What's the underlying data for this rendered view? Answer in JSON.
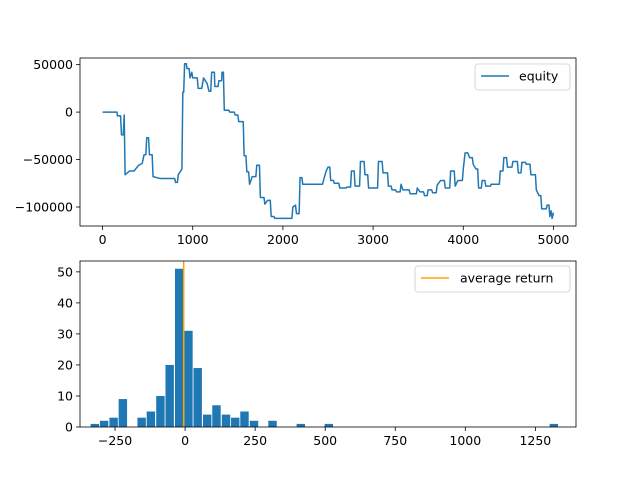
{
  "chart_data": [
    {
      "type": "line",
      "xlim": [
        -250,
        5250
      ],
      "ylim": [
        -120000,
        57000
      ],
      "xticks": [
        0,
        1000,
        2000,
        3000,
        4000,
        5000
      ],
      "xtick_labels": [
        "0",
        "1000",
        "2000",
        "3000",
        "4000",
        "5000"
      ],
      "yticks": [
        50000,
        0,
        -50000,
        -100000
      ],
      "ytick_labels": [
        "50000",
        "0",
        "−50000",
        "−100000"
      ],
      "legend": "top-right",
      "color": "#1f77b4",
      "series": [
        {
          "name": "equity",
          "points": [
            [
              0,
              0
            ],
            [
              160,
              0
            ],
            [
              165,
              -4000
            ],
            [
              200,
              -4000
            ],
            [
              210,
              -24000
            ],
            [
              230,
              -24000
            ],
            [
              240,
              -3000
            ],
            [
              250,
              -66000
            ],
            [
              300,
              -62000
            ],
            [
              350,
              -62000
            ],
            [
              400,
              -56000
            ],
            [
              440,
              -54000
            ],
            [
              460,
              -45000
            ],
            [
              480,
              -45000
            ],
            [
              490,
              -27000
            ],
            [
              510,
              -27000
            ],
            [
              520,
              -45000
            ],
            [
              550,
              -45000
            ],
            [
              560,
              -68000
            ],
            [
              640,
              -70000
            ],
            [
              800,
              -70000
            ],
            [
              810,
              -74000
            ],
            [
              830,
              -74000
            ],
            [
              840,
              -66000
            ],
            [
              880,
              -60000
            ],
            [
              890,
              21000
            ],
            [
              900,
              21000
            ],
            [
              910,
              51000
            ],
            [
              930,
              51000
            ],
            [
              935,
              46000
            ],
            [
              960,
              46000
            ],
            [
              970,
              36000
            ],
            [
              990,
              42000
            ],
            [
              1000,
              36000
            ],
            [
              1050,
              36000
            ],
            [
              1060,
              25000
            ],
            [
              1100,
              25000
            ],
            [
              1120,
              36000
            ],
            [
              1160,
              30000
            ],
            [
              1180,
              22000
            ],
            [
              1200,
              22000
            ],
            [
              1210,
              42000
            ],
            [
              1240,
              42000
            ],
            [
              1245,
              27000
            ],
            [
              1280,
              27000
            ],
            [
              1290,
              33000
            ],
            [
              1320,
              33000
            ],
            [
              1325,
              42000
            ],
            [
              1340,
              42000
            ],
            [
              1350,
              2000
            ],
            [
              1400,
              2000
            ],
            [
              1410,
              0
            ],
            [
              1460,
              0
            ],
            [
              1470,
              -3000
            ],
            [
              1500,
              -3000
            ],
            [
              1510,
              -10000
            ],
            [
              1560,
              -10000
            ],
            [
              1570,
              -46000
            ],
            [
              1590,
              -46000
            ],
            [
              1600,
              -63000
            ],
            [
              1620,
              -63000
            ],
            [
              1630,
              -76000
            ],
            [
              1660,
              -68000
            ],
            [
              1700,
              -68000
            ],
            [
              1710,
              -56000
            ],
            [
              1740,
              -56000
            ],
            [
              1750,
              -90000
            ],
            [
              1790,
              -90000
            ],
            [
              1800,
              -97000
            ],
            [
              1830,
              -93000
            ],
            [
              1860,
              -93000
            ],
            [
              1870,
              -110000
            ],
            [
              1900,
              -110000
            ],
            [
              1910,
              -112000
            ],
            [
              2100,
              -112000
            ],
            [
              2110,
              -100000
            ],
            [
              2140,
              -98000
            ],
            [
              2150,
              -107000
            ],
            [
              2180,
              -107000
            ],
            [
              2190,
              -69000
            ],
            [
              2210,
              -69000
            ],
            [
              2220,
              -76000
            ],
            [
              2440,
              -76000
            ],
            [
              2450,
              -72000
            ],
            [
              2480,
              -62000
            ],
            [
              2500,
              -58000
            ],
            [
              2520,
              -58000
            ],
            [
              2530,
              -72000
            ],
            [
              2560,
              -72000
            ],
            [
              2570,
              -75000
            ],
            [
              2620,
              -75000
            ],
            [
              2630,
              -80000
            ],
            [
              2700,
              -80000
            ],
            [
              2710,
              -79000
            ],
            [
              2750,
              -79000
            ],
            [
              2760,
              -62000
            ],
            [
              2790,
              -62000
            ],
            [
              2800,
              -78000
            ],
            [
              2850,
              -78000
            ],
            [
              2860,
              -52000
            ],
            [
              2900,
              -52000
            ],
            [
              2910,
              -66000
            ],
            [
              2940,
              -66000
            ],
            [
              2950,
              -80000
            ],
            [
              3050,
              -80000
            ],
            [
              3060,
              -52000
            ],
            [
              3100,
              -52000
            ],
            [
              3110,
              -64000
            ],
            [
              3160,
              -64000
            ],
            [
              3170,
              -78000
            ],
            [
              3200,
              -78000
            ],
            [
              3210,
              -82000
            ],
            [
              3250,
              -82000
            ],
            [
              3260,
              -84000
            ],
            [
              3300,
              -84000
            ],
            [
              3310,
              -76000
            ],
            [
              3330,
              -82000
            ],
            [
              3400,
              -82000
            ],
            [
              3410,
              -86000
            ],
            [
              3480,
              -86000
            ],
            [
              3490,
              -80000
            ],
            [
              3520,
              -84000
            ],
            [
              3560,
              -84000
            ],
            [
              3570,
              -88000
            ],
            [
              3600,
              -88000
            ],
            [
              3610,
              -82000
            ],
            [
              3650,
              -82000
            ],
            [
              3660,
              -85000
            ],
            [
              3700,
              -85000
            ],
            [
              3710,
              -77000
            ],
            [
              3750,
              -72000
            ],
            [
              3790,
              -72000
            ],
            [
              3800,
              -80000
            ],
            [
              3850,
              -80000
            ],
            [
              3860,
              -62000
            ],
            [
              3900,
              -62000
            ],
            [
              3910,
              -78000
            ],
            [
              3940,
              -72000
            ],
            [
              3990,
              -72000
            ],
            [
              4000,
              -60000
            ],
            [
              4020,
              -43000
            ],
            [
              4050,
              -43000
            ],
            [
              4070,
              -48000
            ],
            [
              4100,
              -48000
            ],
            [
              4110,
              -55000
            ],
            [
              4140,
              -60000
            ],
            [
              4160,
              -60000
            ],
            [
              4170,
              -80000
            ],
            [
              4200,
              -80000
            ],
            [
              4210,
              -72000
            ],
            [
              4240,
              -72000
            ],
            [
              4250,
              -78000
            ],
            [
              4300,
              -78000
            ],
            [
              4310,
              -76000
            ],
            [
              4400,
              -76000
            ],
            [
              4410,
              -62000
            ],
            [
              4440,
              -62000
            ],
            [
              4450,
              -48000
            ],
            [
              4480,
              -48000
            ],
            [
              4490,
              -58000
            ],
            [
              4540,
              -58000
            ],
            [
              4550,
              -52000
            ],
            [
              4600,
              -52000
            ],
            [
              4610,
              -64000
            ],
            [
              4640,
              -64000
            ],
            [
              4650,
              -53000
            ],
            [
              4690,
              -53000
            ],
            [
              4700,
              -55000
            ],
            [
              4740,
              -55000
            ],
            [
              4750,
              -66000
            ],
            [
              4800,
              -66000
            ],
            [
              4810,
              -82000
            ],
            [
              4840,
              -88000
            ],
            [
              4860,
              -88000
            ],
            [
              4870,
              -102000
            ],
            [
              4920,
              -102000
            ],
            [
              4930,
              -98000
            ],
            [
              4950,
              -98000
            ],
            [
              4960,
              -110000
            ],
            [
              4975,
              -104000
            ],
            [
              4985,
              -112000
            ],
            [
              5000,
              -106000
            ]
          ]
        }
      ]
    },
    {
      "type": "bar",
      "xlim": [
        -375,
        1395
      ],
      "ylim": [
        0,
        53.5
      ],
      "xticks": [
        -250,
        0,
        250,
        500,
        750,
        1000,
        1250
      ],
      "xtick_labels": [
        "−250",
        "0",
        "250",
        "500",
        "750",
        "1000",
        "1250"
      ],
      "yticks": [
        0,
        10,
        20,
        30,
        40,
        50
      ],
      "ytick_labels": [
        "0",
        "10",
        "20",
        "30",
        "40",
        "50"
      ],
      "legend": "top-right",
      "bar_color": "#1f77b4",
      "line_color": "#ffa500",
      "bin_width": 33.4,
      "bin_centers": [
        -322,
        -289,
        -255,
        -222,
        -188,
        -155,
        -122,
        -88,
        -55,
        -21,
        12,
        45,
        79,
        112,
        146,
        179,
        212,
        246,
        279,
        312,
        346,
        379,
        413,
        446,
        480,
        513,
        547,
        580,
        613,
        647,
        680,
        714,
        747,
        781,
        814,
        848,
        881,
        914,
        948,
        981,
        1015,
        1048,
        1082,
        1115,
        1149,
        1182,
        1216,
        1249,
        1282,
        1316
      ],
      "counts": [
        1,
        2,
        3,
        9,
        0,
        3,
        5,
        10,
        20,
        51,
        31,
        19,
        4,
        7,
        4,
        3,
        5,
        2,
        0,
        2,
        0,
        0,
        1,
        0,
        0,
        1,
        0,
        0,
        0,
        0,
        0,
        0,
        0,
        0,
        0,
        0,
        0,
        0,
        0,
        0,
        0,
        0,
        0,
        0,
        0,
        0,
        0,
        0,
        0,
        1
      ],
      "average_x": -5,
      "series": [
        {
          "name": "average return"
        }
      ]
    }
  ]
}
